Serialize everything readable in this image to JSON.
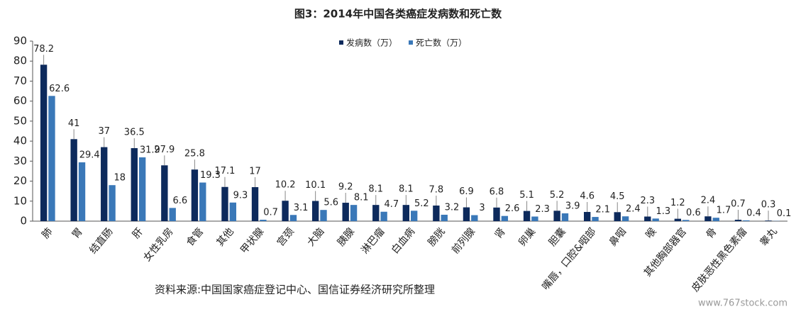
{
  "chart_data": {
    "type": "bar",
    "title": "图3：2014年中国各类癌症发病数和死亡数",
    "categories": [
      "肺",
      "胃",
      "结直肠",
      "肝",
      "女性乳房",
      "食管",
      "其他",
      "甲状腺",
      "宫颈",
      "大脑",
      "胰腺",
      "淋巴瘤",
      "白血病",
      "膀胱",
      "前列腺",
      "肾",
      "卵巢",
      "胆囊",
      "嘴唇，口腔&咽部",
      "鼻咽",
      "喉",
      "其他胸部器官",
      "骨",
      "皮肤恶性黑色素瘤",
      "睾丸"
    ],
    "series": [
      {
        "name": "发病数（万）",
        "color": "#0d2a5c",
        "values": [
          78.2,
          41,
          37,
          36.5,
          27.9,
          25.8,
          17.1,
          17,
          10.2,
          10.1,
          9.2,
          8.1,
          8.1,
          7.8,
          6.9,
          6.8,
          5.1,
          5.2,
          4.6,
          4.5,
          2.3,
          1.2,
          2.4,
          0.7,
          0.3
        ]
      },
      {
        "name": "死亡数（万）",
        "color": "#3a78b8",
        "values": [
          62.6,
          29.4,
          18,
          31.9,
          6.6,
          19.3,
          9.3,
          0.7,
          3.1,
          5.6,
          8.1,
          4.7,
          5.2,
          3.2,
          3,
          2.6,
          2.3,
          3.9,
          2.1,
          2.4,
          1.3,
          0.6,
          1.7,
          0.4,
          0.1
        ]
      }
    ],
    "ylim": [
      0,
      90
    ],
    "yticks": [
      0,
      10,
      20,
      30,
      40,
      50,
      60,
      70,
      80,
      90
    ],
    "legend": "top-right",
    "source": "资料来源:中国国家癌症登记中心、国信证券经济研究所整理",
    "watermark": "www.767stock.com"
  }
}
